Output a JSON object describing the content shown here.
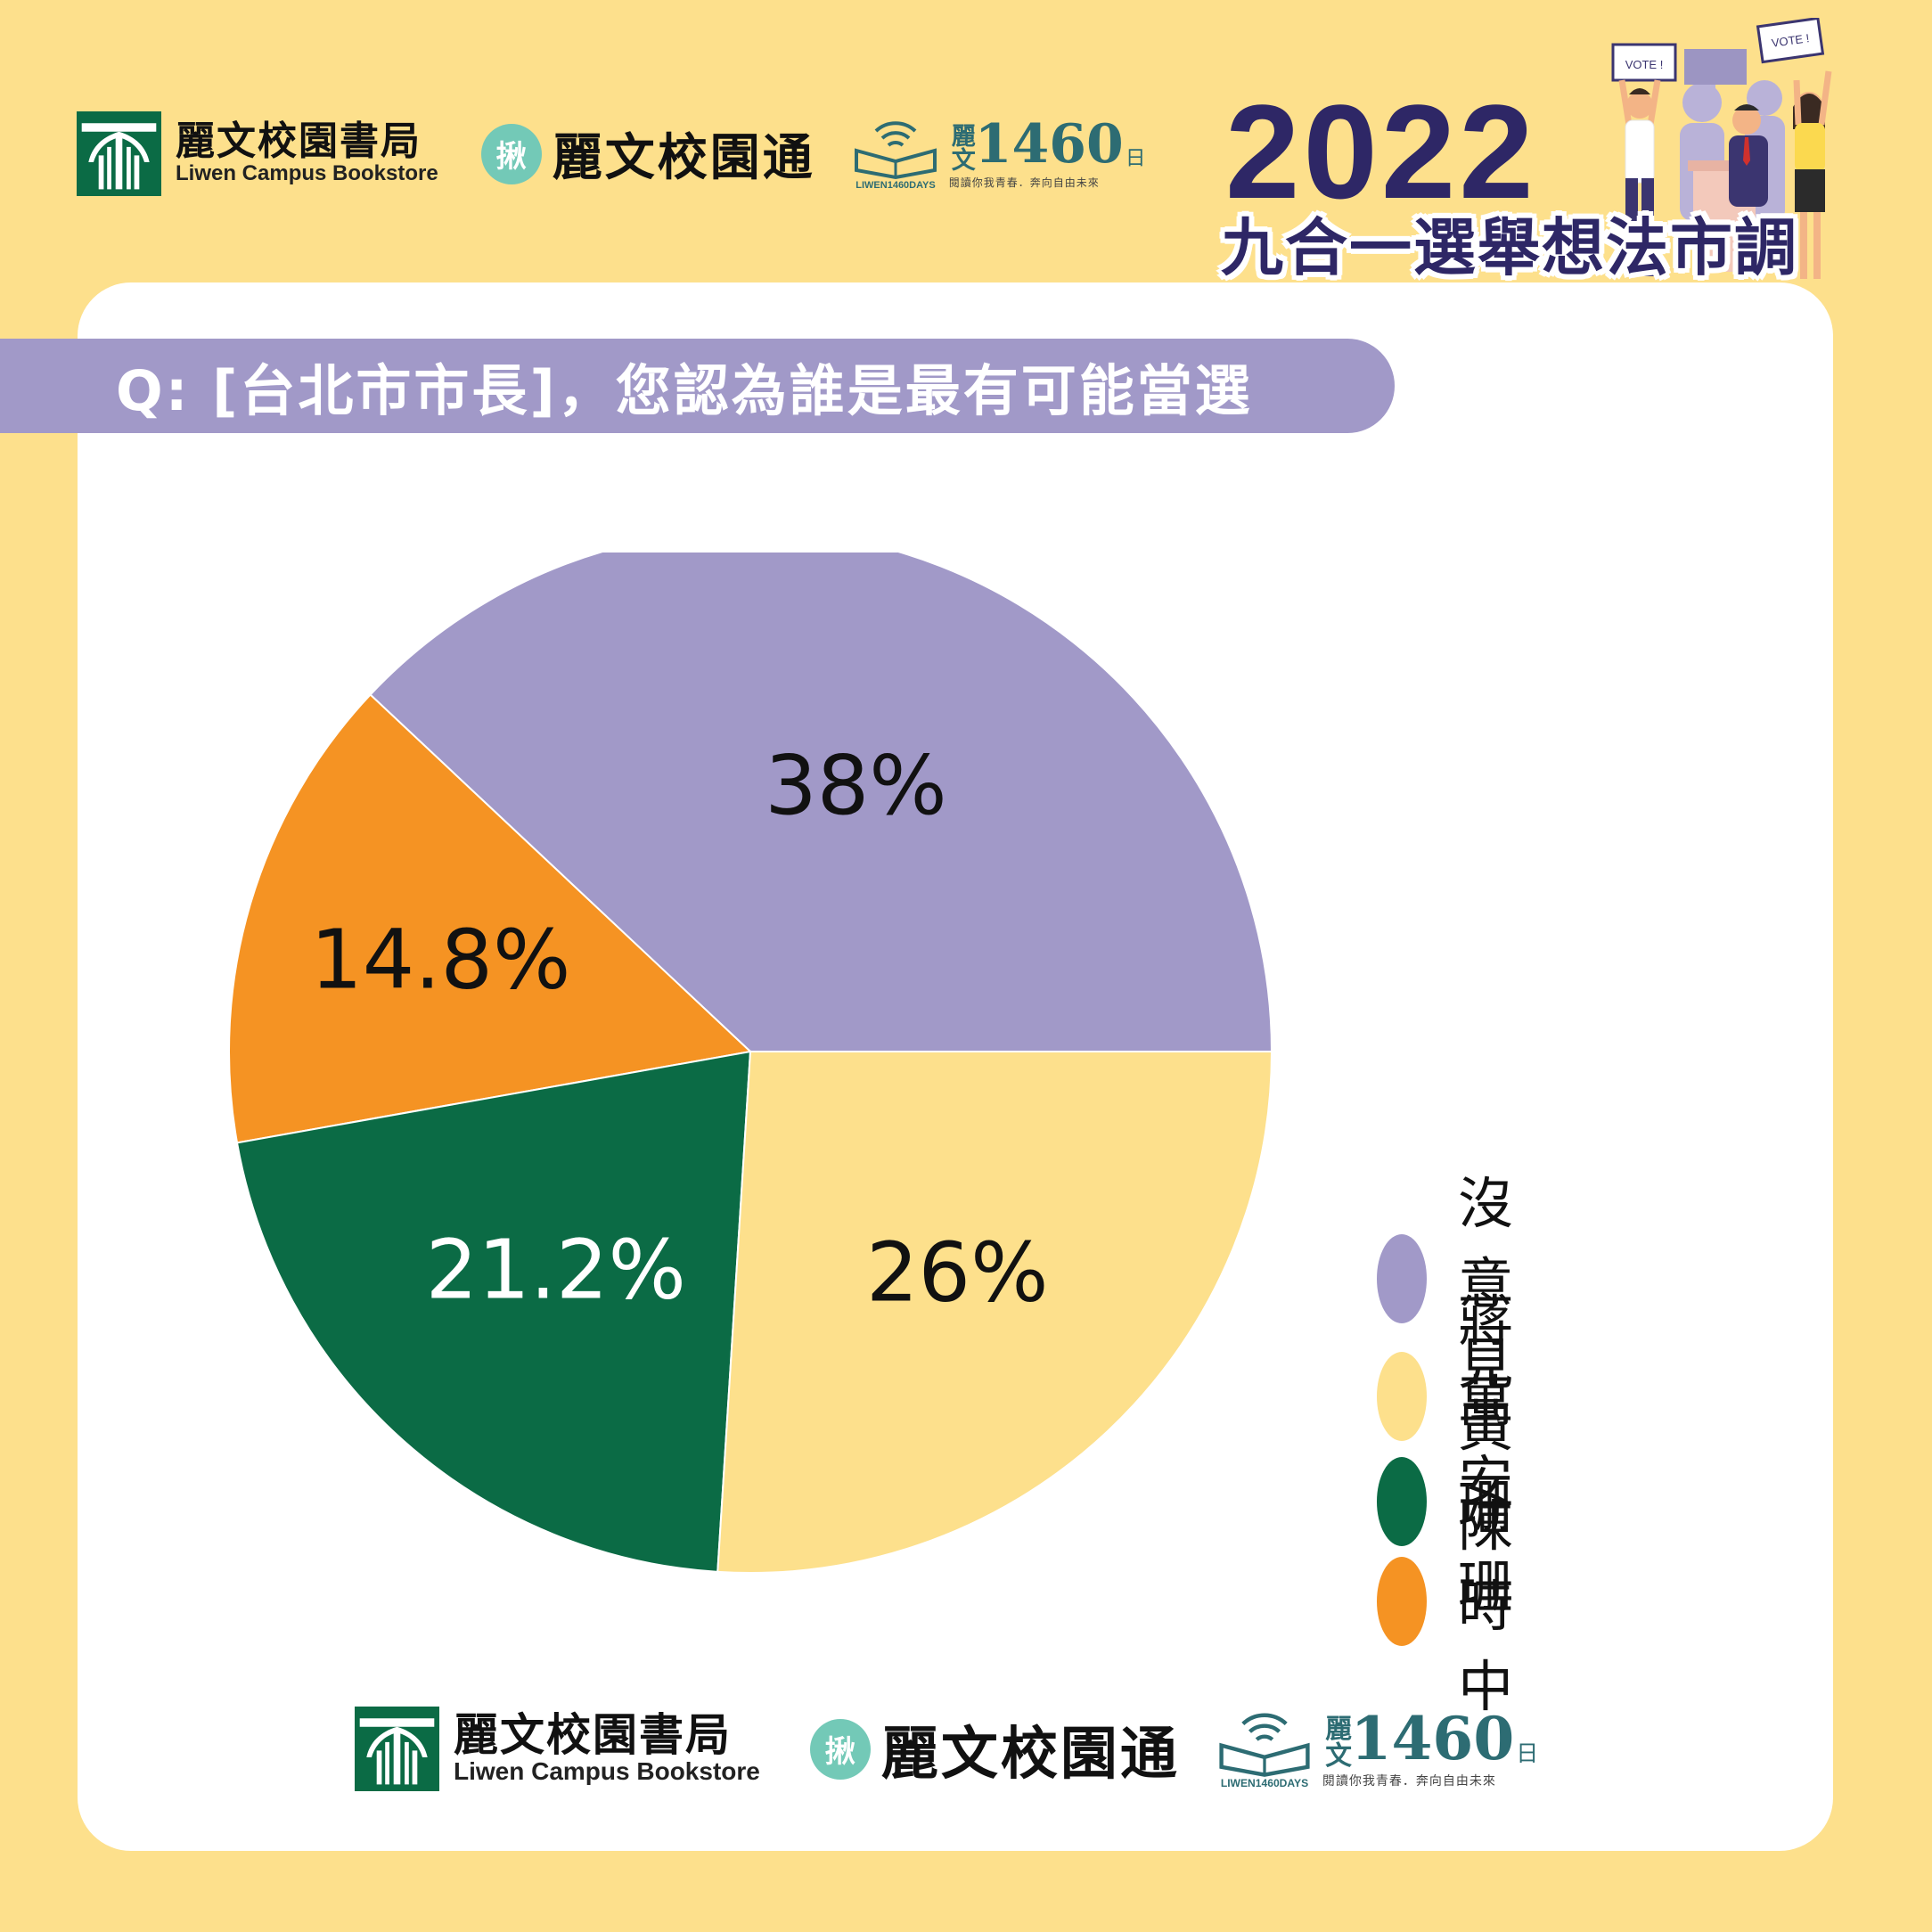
{
  "brand": {
    "bookstore_zh": "麗文校園書局",
    "bookstore_en": "Liwen Campus Bookstore",
    "campus_app": "麗文校園通",
    "campus_badge": "揪",
    "days_prefix": "麗文",
    "days_number": "1460",
    "days_unit": "日",
    "days_slogan": "閱讀你我青春．奔向自由未來",
    "days_book_caption": "LIWEN1460DAYS"
  },
  "header": {
    "year": "2022",
    "subtitle": "九合一選舉想法市調",
    "vote_sign": "VOTE !"
  },
  "question": "Q: [台北市市長]，您認為誰是最有可能當選",
  "colors": {
    "background": "#fde08c",
    "card": "#ffffff",
    "title": "#2e2766",
    "pill": "#a199c8"
  },
  "chart_data": {
    "type": "pie",
    "title": "",
    "legend_position": "right",
    "slices": [
      {
        "label": "沒意見",
        "value": 38,
        "display": "38%",
        "color": "#a199c8",
        "text_color": "#111111"
      },
      {
        "label": "蔣萬安",
        "value": 26,
        "display": "26%",
        "color": "#fde08c",
        "text_color": "#111111"
      },
      {
        "label": "黃珊珊",
        "value": 21.2,
        "display": "21.2%",
        "color": "#0b6b45",
        "text_color": "#ffffff"
      },
      {
        "label": "陳時中",
        "value": 14.8,
        "display": "14.8%",
        "color": "#f59323",
        "text_color": "#111111"
      }
    ]
  }
}
